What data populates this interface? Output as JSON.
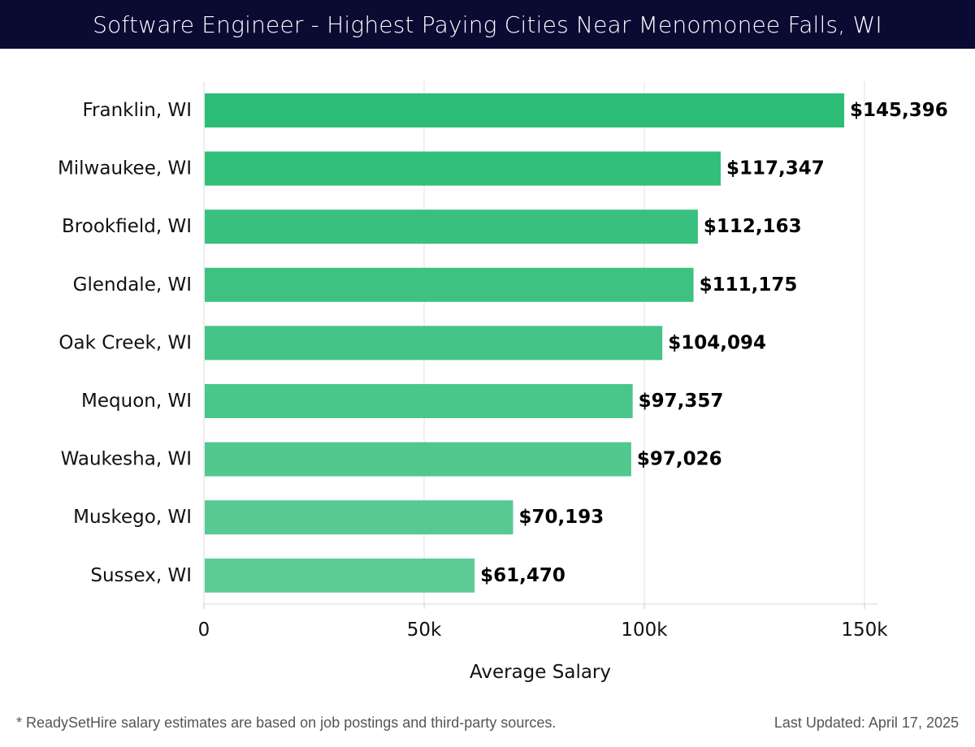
{
  "header": {
    "title": "Software Engineer - Highest Paying Cities Near Menomonee Falls, WI",
    "background_color": "#0b0a33",
    "text_color": "#ffffff"
  },
  "chart_data": {
    "type": "bar",
    "orientation": "horizontal",
    "categories": [
      "Franklin, WI",
      "Milwaukee, WI",
      "Brookfield, WI",
      "Glendale, WI",
      "Oak Creek, WI",
      "Mequon, WI",
      "Waukesha, WI",
      "Muskego, WI",
      "Sussex, WI"
    ],
    "values": [
      145396,
      117347,
      112163,
      111175,
      104094,
      97357,
      97026,
      70193,
      61470
    ],
    "value_labels": [
      "$145,396",
      "$117,347",
      "$112,163",
      "$111,175",
      "$104,094",
      "$97,357",
      "$97,026",
      "$70,193",
      "$61,470"
    ],
    "xlabel": "Average Salary",
    "ylabel": "",
    "xlim": [
      0,
      150000
    ],
    "x_ticks": [
      0,
      50000,
      100000,
      150000
    ],
    "x_tick_labels": [
      "0",
      "50k",
      "100k",
      "150k"
    ],
    "grid": true,
    "bar_color": "#2bbd76",
    "bar_color_light": "#5dcb96"
  },
  "footer": {
    "note": "* ReadySetHire salary estimates are based on job postings and third-party sources.",
    "updated": "Last Updated: April 17, 2025"
  }
}
